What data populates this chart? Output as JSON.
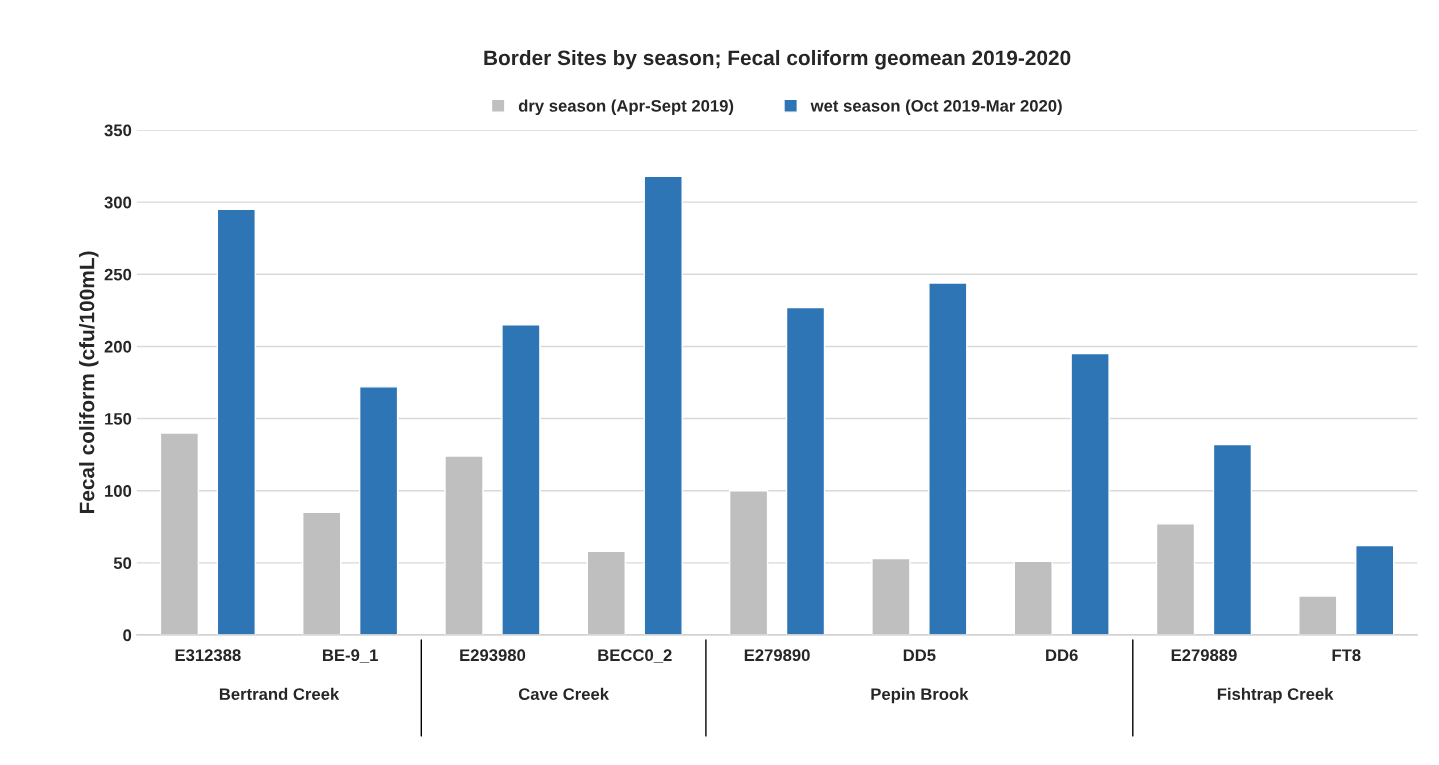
{
  "chart_data": {
    "type": "bar",
    "title": "Border Sites by season; Fecal coliform geomean 2019-2020",
    "ylabel": "Fecal coliform (cfu/100mL)",
    "categories": [
      "E312388",
      "BE-9_1",
      "E293980",
      "BECC0_2",
      "E279890",
      "DD5",
      "DD6",
      "E279889",
      "FT8"
    ],
    "series": [
      {
        "name": "dry season (Apr-Sept 2019)",
        "color": "#bfbfbf",
        "values": [
          140,
          85,
          124,
          58,
          100,
          53,
          51,
          77,
          27
        ]
      },
      {
        "name": "wet season (Oct 2019-Mar 2020)",
        "color": "#2e75b6",
        "values": [
          295,
          172,
          215,
          318,
          227,
          244,
          195,
          132,
          62
        ]
      }
    ],
    "annotations": [
      "Bertrand Creek",
      "Cave Creek",
      "Pepin Brook",
      "Fishtrap Creek"
    ],
    "ylim": [
      0,
      350
    ],
    "yticks": [
      0,
      50,
      100,
      150,
      200,
      250,
      300,
      350
    ],
    "grid": "y",
    "legend": "top"
  }
}
